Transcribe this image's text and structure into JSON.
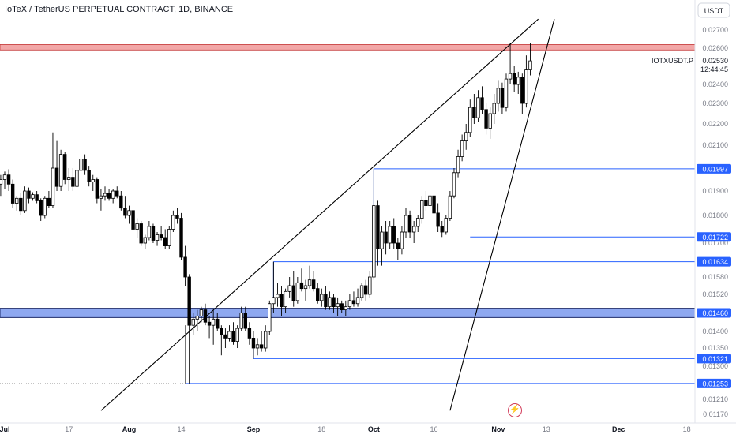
{
  "header": {
    "title": "IoTeX / TetherUS PERPETUAL CONTRACT, 1D, BINANCE"
  },
  "price_axis": {
    "currency_label": "USDT",
    "symbol_label": "IOTXUSDT.P",
    "last_price": "0.02530",
    "countdown": "12:44:45"
  },
  "colors": {
    "up_candle": "#ffffff",
    "down_candle": "#000000",
    "candle_border": "#000000",
    "level_line": "#2962ff",
    "zone_fill": "#8ea8f0",
    "resistance_fill": "#f2a7a7",
    "trend_line": "#000000",
    "label_bg": "#2962ff",
    "label_text": "#ffffff",
    "axis_text": "#787b86",
    "watermark": "#d23c5a"
  },
  "icons": {
    "watermark": "lightning-bolt-icon"
  },
  "chart_data": {
    "type": "candlestick",
    "title": "IoTeX / TetherUS PERPETUAL CONTRACT, 1D, BINANCE",
    "y_ticks": [
      "0.02700",
      "0.02600",
      "0.02400",
      "0.02300",
      "0.02200",
      "0.02100",
      "0.01900",
      "0.01800",
      "0.01700",
      "0.01580",
      "0.01520",
      "0.01400",
      "0.01350",
      "0.01300",
      "0.01210",
      "0.01170"
    ],
    "x_ticks": [
      "Jul",
      "17",
      "Aug",
      "14",
      "Sep",
      "18",
      "Oct",
      "16",
      "Nov",
      "13",
      "Dec",
      "18"
    ],
    "level_labels": [
      "0.01997",
      "0.01722",
      "0.01634",
      "0.01460",
      "0.01321",
      "0.01253"
    ],
    "resistance_zone": [
      0.0259,
      0.0262
    ],
    "support_zone": [
      0.01445,
      0.01475
    ],
    "horizontal_levels": [
      {
        "price": 0.01997,
        "start": "2023-10-01"
      },
      {
        "price": 0.01722,
        "start": "2023-10-25"
      },
      {
        "price": 0.01634,
        "start": "2023-09-06"
      },
      {
        "price": 0.01321,
        "start": "2023-09-01"
      },
      {
        "price": 0.01253,
        "start": "2023-08-15"
      }
    ],
    "trend_lines": [
      {
        "from": [
          "2023-07-25",
          0.0118
        ],
        "to": [
          "2023-11-11",
          0.0276
        ]
      },
      {
        "from": [
          "2023-10-20",
          0.0118
        ],
        "to": [
          "2023-11-15",
          0.0276
        ]
      }
    ],
    "candles": [
      [
        "2023-06-30",
        0.0193,
        0.0197,
        0.0188,
        0.0195
      ],
      [
        "2023-07-01",
        0.0195,
        0.01985,
        0.0191,
        0.0197
      ],
      [
        "2023-07-02",
        0.0197,
        0.01995,
        0.019,
        0.0193
      ],
      [
        "2023-07-03",
        0.0193,
        0.0195,
        0.0183,
        0.0185
      ],
      [
        "2023-07-04",
        0.0185,
        0.0188,
        0.0182,
        0.0187
      ],
      [
        "2023-07-05",
        0.0187,
        0.0189,
        0.018,
        0.0182
      ],
      [
        "2023-07-06",
        0.0182,
        0.0192,
        0.0181,
        0.019
      ],
      [
        "2023-07-07",
        0.019,
        0.01915,
        0.0185,
        0.0187
      ],
      [
        "2023-07-08",
        0.0187,
        0.01895,
        0.0186,
        0.01885
      ],
      [
        "2023-07-09",
        0.01885,
        0.019,
        0.0185,
        0.0186
      ],
      [
        "2023-07-10",
        0.0186,
        0.0187,
        0.0178,
        0.018
      ],
      [
        "2023-07-11",
        0.018,
        0.0188,
        0.0179,
        0.0187
      ],
      [
        "2023-07-12",
        0.0187,
        0.019,
        0.0183,
        0.0184
      ],
      [
        "2023-07-13",
        0.0184,
        0.0216,
        0.0183,
        0.02
      ],
      [
        "2023-07-14",
        0.02,
        0.0212,
        0.019,
        0.0192
      ],
      [
        "2023-07-15",
        0.0192,
        0.0208,
        0.019,
        0.0206
      ],
      [
        "2023-07-16",
        0.0206,
        0.0207,
        0.0193,
        0.0195
      ],
      [
        "2023-07-17",
        0.0195,
        0.02,
        0.019,
        0.0196
      ],
      [
        "2023-07-18",
        0.0196,
        0.02,
        0.019,
        0.0192
      ],
      [
        "2023-07-19",
        0.0192,
        0.0203,
        0.0191,
        0.0199
      ],
      [
        "2023-07-20",
        0.0199,
        0.0208,
        0.0195,
        0.0204
      ],
      [
        "2023-07-21",
        0.0204,
        0.0206,
        0.0197,
        0.0199
      ],
      [
        "2023-07-22",
        0.0199,
        0.0201,
        0.0192,
        0.0194
      ],
      [
        "2023-07-23",
        0.0194,
        0.0197,
        0.019,
        0.0195
      ],
      [
        "2023-07-24",
        0.0195,
        0.0196,
        0.0185,
        0.0187
      ],
      [
        "2023-07-25",
        0.0187,
        0.0191,
        0.0182,
        0.0188
      ],
      [
        "2023-07-26",
        0.0188,
        0.0192,
        0.0186,
        0.0189
      ],
      [
        "2023-07-27",
        0.0189,
        0.0191,
        0.0186,
        0.0187
      ],
      [
        "2023-07-28",
        0.0187,
        0.0191,
        0.0185,
        0.019
      ],
      [
        "2023-07-29",
        0.019,
        0.0192,
        0.0187,
        0.0188
      ],
      [
        "2023-07-30",
        0.0188,
        0.019,
        0.0182,
        0.0183
      ],
      [
        "2023-07-31",
        0.0183,
        0.0188,
        0.0179,
        0.018
      ],
      [
        "2023-08-01",
        0.018,
        0.0184,
        0.0177,
        0.0182
      ],
      [
        "2023-08-02",
        0.0182,
        0.0183,
        0.0174,
        0.0175
      ],
      [
        "2023-08-03",
        0.0175,
        0.0179,
        0.0172,
        0.0177
      ],
      [
        "2023-08-04",
        0.0177,
        0.0178,
        0.0169,
        0.017
      ],
      [
        "2023-08-05",
        0.017,
        0.0173,
        0.0168,
        0.0172
      ],
      [
        "2023-08-06",
        0.0172,
        0.0178,
        0.0171,
        0.0176
      ],
      [
        "2023-08-07",
        0.0176,
        0.0177,
        0.017,
        0.0171
      ],
      [
        "2023-08-08",
        0.0171,
        0.0174,
        0.0169,
        0.0173
      ],
      [
        "2023-08-09",
        0.0173,
        0.0176,
        0.0171,
        0.0172
      ],
      [
        "2023-08-10",
        0.0172,
        0.0175,
        0.0168,
        0.0169
      ],
      [
        "2023-08-11",
        0.0169,
        0.0176,
        0.0168,
        0.0175
      ],
      [
        "2023-08-12",
        0.0175,
        0.0182,
        0.0174,
        0.018
      ],
      [
        "2023-08-13",
        0.018,
        0.0183,
        0.0177,
        0.0179
      ],
      [
        "2023-08-14",
        0.0179,
        0.0181,
        0.0164,
        0.0165
      ],
      [
        "2023-08-15",
        0.0165,
        0.0169,
        0.0155,
        0.0158
      ],
      [
        "2023-08-16",
        0.0158,
        0.0159,
        0.01253,
        0.0142
      ],
      [
        "2023-08-17",
        0.0142,
        0.0146,
        0.0139,
        0.0144
      ],
      [
        "2023-08-18",
        0.0144,
        0.0147,
        0.014,
        0.0145
      ],
      [
        "2023-08-19",
        0.0145,
        0.0148,
        0.0143,
        0.0147
      ],
      [
        "2023-08-20",
        0.0147,
        0.0149,
        0.0142,
        0.0143
      ],
      [
        "2023-08-21",
        0.0143,
        0.0145,
        0.0138,
        0.0142
      ],
      [
        "2023-08-22",
        0.0142,
        0.0147,
        0.0136,
        0.0144
      ],
      [
        "2023-08-23",
        0.0144,
        0.0146,
        0.014,
        0.0141
      ],
      [
        "2023-08-24",
        0.0141,
        0.0142,
        0.0133,
        0.0139
      ],
      [
        "2023-08-25",
        0.0139,
        0.0141,
        0.0135,
        0.0138
      ],
      [
        "2023-08-26",
        0.0138,
        0.0142,
        0.0137,
        0.014
      ],
      [
        "2023-08-27",
        0.014,
        0.0143,
        0.0136,
        0.0137
      ],
      [
        "2023-08-28",
        0.0137,
        0.0142,
        0.0135,
        0.0141
      ],
      [
        "2023-08-29",
        0.0141,
        0.0148,
        0.014,
        0.0146
      ],
      [
        "2023-08-30",
        0.0146,
        0.0148,
        0.014,
        0.0141
      ],
      [
        "2023-08-31",
        0.0141,
        0.0143,
        0.0136,
        0.0138
      ],
      [
        "2023-09-01",
        0.0138,
        0.014,
        0.01321,
        0.0135
      ],
      [
        "2023-09-02",
        0.0135,
        0.0138,
        0.0133,
        0.0136
      ],
      [
        "2023-09-03",
        0.0136,
        0.014,
        0.0134,
        0.0135
      ],
      [
        "2023-09-04",
        0.0135,
        0.0142,
        0.0134,
        0.014
      ],
      [
        "2023-09-05",
        0.014,
        0.015,
        0.0139,
        0.0149
      ],
      [
        "2023-09-06",
        0.0149,
        0.01634,
        0.0146,
        0.0151
      ],
      [
        "2023-09-07",
        0.0151,
        0.0156,
        0.0148,
        0.0152
      ],
      [
        "2023-09-08",
        0.0152,
        0.0155,
        0.0145,
        0.0148
      ],
      [
        "2023-09-09",
        0.0148,
        0.0154,
        0.0146,
        0.0153
      ],
      [
        "2023-09-10",
        0.0153,
        0.0158,
        0.0151,
        0.0155
      ],
      [
        "2023-09-11",
        0.0155,
        0.016,
        0.0148,
        0.015
      ],
      [
        "2023-09-12",
        0.015,
        0.0158,
        0.0149,
        0.0156
      ],
      [
        "2023-09-13",
        0.0156,
        0.0161,
        0.0153,
        0.0154
      ],
      [
        "2023-09-14",
        0.0154,
        0.0157,
        0.015,
        0.0155
      ],
      [
        "2023-09-15",
        0.0155,
        0.0162,
        0.0154,
        0.0157
      ],
      [
        "2023-09-16",
        0.0157,
        0.016,
        0.0153,
        0.0154
      ],
      [
        "2023-09-17",
        0.0154,
        0.0156,
        0.0149,
        0.015
      ],
      [
        "2023-09-18",
        0.015,
        0.0154,
        0.0148,
        0.0152
      ],
      [
        "2023-09-19",
        0.0152,
        0.0155,
        0.0147,
        0.0148
      ],
      [
        "2023-09-20",
        0.0148,
        0.0153,
        0.0147,
        0.0151
      ],
      [
        "2023-09-21",
        0.0151,
        0.0152,
        0.0146,
        0.0148
      ],
      [
        "2023-09-22",
        0.0148,
        0.0151,
        0.0145,
        0.0149
      ],
      [
        "2023-09-23",
        0.0149,
        0.015,
        0.0146,
        0.0147
      ],
      [
        "2023-09-24",
        0.0147,
        0.015,
        0.0145,
        0.0148
      ],
      [
        "2023-09-25",
        0.0148,
        0.0152,
        0.0147,
        0.015
      ],
      [
        "2023-09-26",
        0.015,
        0.0153,
        0.0148,
        0.0149
      ],
      [
        "2023-09-27",
        0.0149,
        0.0154,
        0.0148,
        0.0151
      ],
      [
        "2023-09-28",
        0.0151,
        0.0156,
        0.015,
        0.0155
      ],
      [
        "2023-09-29",
        0.0155,
        0.0157,
        0.015,
        0.0152
      ],
      [
        "2023-09-30",
        0.0152,
        0.016,
        0.0151,
        0.0158
      ],
      [
        "2023-10-01",
        0.0158,
        0.01997,
        0.0157,
        0.0184
      ],
      [
        "2023-10-02",
        0.0184,
        0.0186,
        0.0162,
        0.0168
      ],
      [
        "2023-10-03",
        0.0168,
        0.0176,
        0.0162,
        0.0174
      ],
      [
        "2023-10-04",
        0.0174,
        0.0178,
        0.0166,
        0.017
      ],
      [
        "2023-10-05",
        0.017,
        0.0178,
        0.0168,
        0.0176
      ],
      [
        "2023-10-06",
        0.0176,
        0.0179,
        0.0168,
        0.017
      ],
      [
        "2023-10-07",
        0.017,
        0.0172,
        0.0164,
        0.0168
      ],
      [
        "2023-10-08",
        0.0168,
        0.0176,
        0.0166,
        0.0174
      ],
      [
        "2023-10-09",
        0.0174,
        0.0183,
        0.0172,
        0.018
      ],
      [
        "2023-10-10",
        0.018,
        0.0182,
        0.0172,
        0.0174
      ],
      [
        "2023-10-11",
        0.0174,
        0.0178,
        0.017,
        0.0176
      ],
      [
        "2023-10-12",
        0.0176,
        0.018,
        0.0174,
        0.0179
      ],
      [
        "2023-10-13",
        0.0179,
        0.0188,
        0.0177,
        0.0186
      ],
      [
        "2023-10-14",
        0.0186,
        0.019,
        0.0182,
        0.0184
      ],
      [
        "2023-10-15",
        0.0184,
        0.0189,
        0.0183,
        0.0188
      ],
      [
        "2023-10-16",
        0.0188,
        0.0192,
        0.0179,
        0.0181
      ],
      [
        "2023-10-17",
        0.0181,
        0.0185,
        0.0174,
        0.0176
      ],
      [
        "2023-10-18",
        0.0176,
        0.0178,
        0.01722,
        0.0174
      ],
      [
        "2023-10-19",
        0.0174,
        0.018,
        0.0173,
        0.0179
      ],
      [
        "2023-10-20",
        0.0179,
        0.019,
        0.0178,
        0.0188
      ],
      [
        "2023-10-21",
        0.0188,
        0.02,
        0.0187,
        0.0198
      ],
      [
        "2023-10-22",
        0.0198,
        0.0208,
        0.0196,
        0.0205
      ],
      [
        "2023-10-23",
        0.0205,
        0.0215,
        0.0203,
        0.0212
      ],
      [
        "2023-10-24",
        0.0212,
        0.022,
        0.0208,
        0.0216
      ],
      [
        "2023-10-25",
        0.0216,
        0.0232,
        0.0214,
        0.0228
      ],
      [
        "2023-10-26",
        0.0228,
        0.0235,
        0.022,
        0.0223
      ],
      [
        "2023-10-27",
        0.0223,
        0.0237,
        0.0221,
        0.0233
      ],
      [
        "2023-10-28",
        0.0233,
        0.0239,
        0.0225,
        0.0227
      ],
      [
        "2023-10-29",
        0.0227,
        0.023,
        0.0215,
        0.0218
      ],
      [
        "2023-10-30",
        0.0218,
        0.0228,
        0.0213,
        0.0225
      ],
      [
        "2023-10-31",
        0.0225,
        0.0235,
        0.022,
        0.023
      ],
      [
        "2023-11-01",
        0.023,
        0.0242,
        0.0226,
        0.0238
      ],
      [
        "2023-11-02",
        0.0238,
        0.0241,
        0.0225,
        0.0228
      ],
      [
        "2023-11-03",
        0.0228,
        0.0246,
        0.0226,
        0.0243
      ],
      [
        "2023-11-04",
        0.0243,
        0.0263,
        0.024,
        0.0246
      ],
      [
        "2023-11-05",
        0.0246,
        0.025,
        0.0236,
        0.024
      ],
      [
        "2023-11-06",
        0.024,
        0.0247,
        0.0235,
        0.0244
      ],
      [
        "2023-11-07",
        0.0244,
        0.0246,
        0.0225,
        0.023
      ],
      [
        "2023-11-08",
        0.023,
        0.0256,
        0.0228,
        0.0248
      ],
      [
        "2023-11-09",
        0.0248,
        0.0263,
        0.0245,
        0.0253
      ]
    ]
  }
}
